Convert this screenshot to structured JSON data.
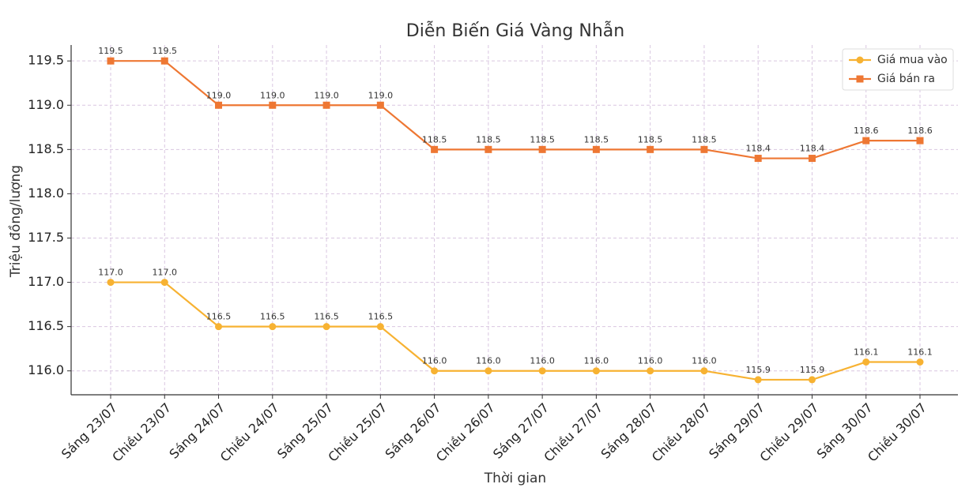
{
  "chart_data": {
    "type": "line",
    "title": "Diễn Biến Giá Vàng Nhẫn",
    "x_label": "Thời gian",
    "y_label": "Triệu đồng/lượng",
    "categories": [
      "Sáng 23/07",
      "Chiều 23/07",
      "Sáng 24/07",
      "Chiều 24/07",
      "Sáng 25/07",
      "Chiều 25/07",
      "Sáng 26/07",
      "Chiều 26/07",
      "Sáng 27/07",
      "Chiều 27/07",
      "Sáng 28/07",
      "Chiều 28/07",
      "Sáng 29/07",
      "Chiều 29/07",
      "Sáng 30/07",
      "Chiều 30/07"
    ],
    "series": [
      {
        "name": "Giá mua vào",
        "color": "#f7b232",
        "marker": "circle",
        "values": [
          117.0,
          117.0,
          116.5,
          116.5,
          116.5,
          116.5,
          116.0,
          116.0,
          116.0,
          116.0,
          116.0,
          116.0,
          115.9,
          115.9,
          116.1,
          116.1
        ],
        "value_labels": [
          "117.0",
          "117.0",
          "116.5",
          "116.5",
          "116.5",
          "116.5",
          "116.0",
          "116.0",
          "116.0",
          "116.0",
          "116.0",
          "116.0",
          "115.9",
          "115.9",
          "116.1",
          "116.1"
        ]
      },
      {
        "name": "Giá bán ra",
        "color": "#ee7733",
        "marker": "square",
        "values": [
          119.5,
          119.5,
          119.0,
          119.0,
          119.0,
          119.0,
          118.5,
          118.5,
          118.5,
          118.5,
          118.5,
          118.5,
          118.4,
          118.4,
          118.6,
          118.6
        ],
        "value_labels": [
          "119.5",
          "119.5",
          "119.0",
          "119.0",
          "119.0",
          "119.0",
          "118.5",
          "118.5",
          "118.5",
          "118.5",
          "118.5",
          "118.5",
          "118.4",
          "118.4",
          "118.6",
          "118.6"
        ]
      }
    ],
    "ylim": [
      115.73,
      119.68
    ],
    "yticks": [
      {
        "value": 116,
        "label": "116.0"
      },
      116.5,
      {
        "value": 117,
        "label": "117.0"
      },
      117.5,
      {
        "value": 118,
        "label": "118.0"
      },
      118.5,
      {
        "value": 119,
        "label": "119.0"
      },
      119.5
    ],
    "grid": true,
    "legend": "upper right"
  }
}
